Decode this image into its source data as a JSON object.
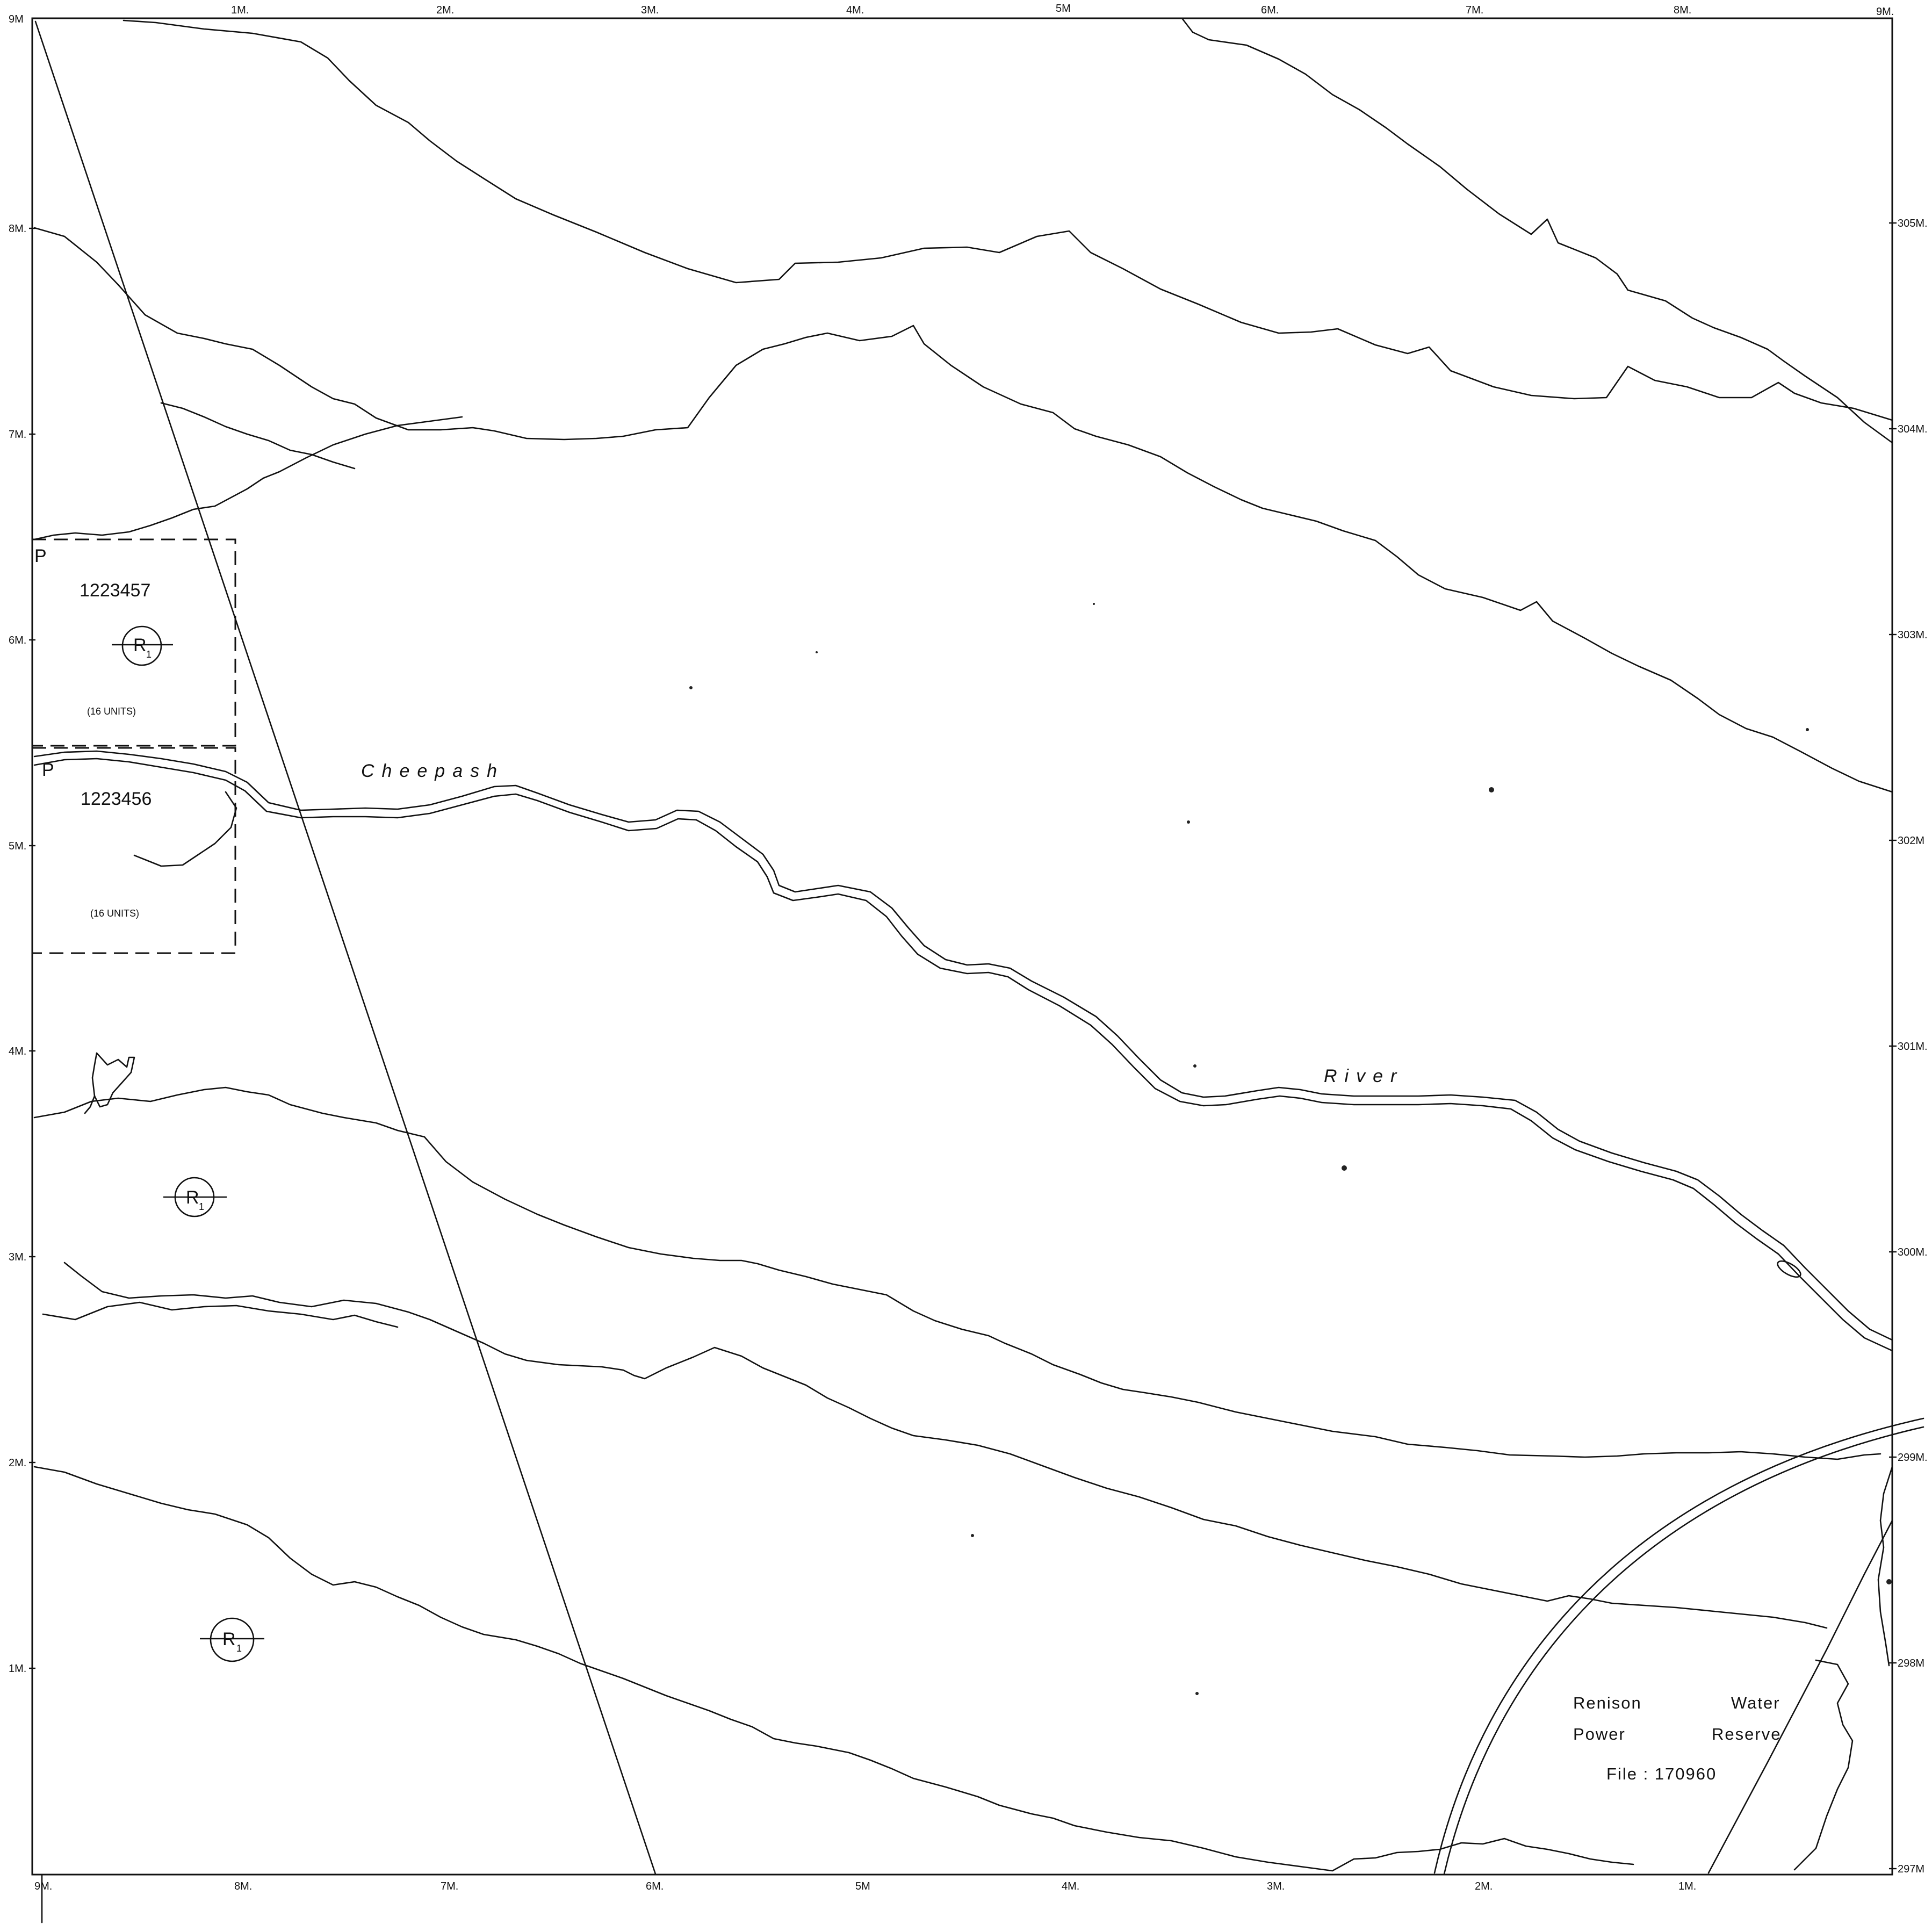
{
  "scale_labels": {
    "top": [
      "9M",
      "1M.",
      "2M.",
      "3M.",
      "4M.",
      "5M",
      "6M.",
      "7M.",
      "8M.",
      "9M."
    ],
    "bottom": [
      "9M.",
      "8M.",
      "7M.",
      "6M.",
      "5M",
      "4M.",
      "3M.",
      "2M.",
      "1M."
    ],
    "left": [
      "8M.",
      "7M.",
      "6M.",
      "5M.",
      "4M.",
      "3M.",
      "2M.",
      "1M."
    ],
    "right": [
      "305M.",
      "304M.",
      "303M.",
      "302M",
      "301M.",
      "300M.",
      "299M.",
      "298M",
      "297M"
    ]
  },
  "claims": [
    {
      "marker": "P",
      "number": "1223457",
      "units": "(16 UNITS)"
    },
    {
      "marker": "P",
      "number": "1223456",
      "units": "(16 UNITS)"
    }
  ],
  "reserve_symbol": {
    "letter": "R",
    "subscript": "1"
  },
  "river": {
    "name_part1": "Cheepash",
    "name_part2": "River"
  },
  "reserve": {
    "line1_left": "Renison",
    "line1_right": "Water",
    "line2_left": "Power",
    "line2_right": "Reserve",
    "file": "File : 170960"
  },
  "colors": {
    "ink": "#111111",
    "paper": "#ffffff"
  }
}
